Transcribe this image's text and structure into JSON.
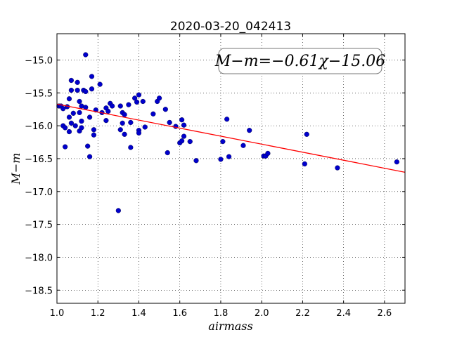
{
  "chart_data": {
    "type": "scatter",
    "title": "2020-03-20_042413",
    "xlabel": "airmass",
    "ylabel": "M−m",
    "xlim": [
      1.0,
      2.7
    ],
    "ylim": [
      -18.7,
      -14.6
    ],
    "y_inverted": true,
    "grid": true,
    "x_ticks": [
      "1.0",
      "1.2",
      "1.4",
      "1.6",
      "1.8",
      "2.0",
      "2.2",
      "2.4",
      "2.6"
    ],
    "y_ticks": [
      "−15.0",
      "−15.5",
      "−16.0",
      "−16.5",
      "−17.0",
      "−17.5",
      "−18.0",
      "−18.5"
    ],
    "annotation": "M−m=−0.61χ−15.06",
    "fit": {
      "slope": -0.61,
      "intercept": -15.06,
      "color": "#ff0000"
    },
    "point_color": "#0000cc",
    "points": [
      [
        1.01,
        -15.7
      ],
      [
        1.02,
        -15.7
      ],
      [
        1.03,
        -15.74
      ],
      [
        1.03,
        -16.0
      ],
      [
        1.04,
        -16.03
      ],
      [
        1.04,
        -16.32
      ],
      [
        1.05,
        -15.71
      ],
      [
        1.06,
        -15.87
      ],
      [
        1.06,
        -15.59
      ],
      [
        1.06,
        -16.09
      ],
      [
        1.07,
        -15.96
      ],
      [
        1.07,
        -15.46
      ],
      [
        1.07,
        -15.31
      ],
      [
        1.08,
        -15.81
      ],
      [
        1.09,
        -16.0
      ],
      [
        1.1,
        -15.34
      ],
      [
        1.1,
        -15.46
      ],
      [
        1.11,
        -15.63
      ],
      [
        1.11,
        -15.8
      ],
      [
        1.11,
        -16.08
      ],
      [
        1.12,
        -15.7
      ],
      [
        1.12,
        -16.03
      ],
      [
        1.12,
        -15.93
      ],
      [
        1.13,
        -15.46
      ],
      [
        1.14,
        -14.92
      ],
      [
        1.14,
        -15.48
      ],
      [
        1.14,
        -15.72
      ],
      [
        1.15,
        -16.31
      ],
      [
        1.16,
        -16.47
      ],
      [
        1.16,
        -15.87
      ],
      [
        1.17,
        -15.44
      ],
      [
        1.17,
        -15.25
      ],
      [
        1.18,
        -16.06
      ],
      [
        1.18,
        -16.14
      ],
      [
        1.19,
        -15.76
      ],
      [
        1.21,
        -15.37
      ],
      [
        1.22,
        -15.8
      ],
      [
        1.24,
        -15.92
      ],
      [
        1.24,
        -15.73
      ],
      [
        1.25,
        -15.78
      ],
      [
        1.26,
        -15.66
      ],
      [
        1.27,
        -15.7
      ],
      [
        1.3,
        -17.29
      ],
      [
        1.31,
        -15.7
      ],
      [
        1.31,
        -16.06
      ],
      [
        1.32,
        -15.8
      ],
      [
        1.32,
        -15.96
      ],
      [
        1.33,
        -16.13
      ],
      [
        1.33,
        -15.83
      ],
      [
        1.35,
        -15.68
      ],
      [
        1.36,
        -15.95
      ],
      [
        1.36,
        -16.33
      ],
      [
        1.38,
        -15.58
      ],
      [
        1.39,
        -15.64
      ],
      [
        1.4,
        -15.53
      ],
      [
        1.4,
        -16.07
      ],
      [
        1.4,
        -16.11
      ],
      [
        1.42,
        -15.63
      ],
      [
        1.43,
        -16.02
      ],
      [
        1.47,
        -15.82
      ],
      [
        1.49,
        -15.63
      ],
      [
        1.5,
        -15.58
      ],
      [
        1.53,
        -15.75
      ],
      [
        1.54,
        -16.41
      ],
      [
        1.55,
        -15.95
      ],
      [
        1.58,
        -16.01
      ],
      [
        1.6,
        -16.26
      ],
      [
        1.61,
        -15.91
      ],
      [
        1.61,
        -16.23
      ],
      [
        1.62,
        -16.16
      ],
      [
        1.62,
        -15.99
      ],
      [
        1.65,
        -16.24
      ],
      [
        1.68,
        -16.53
      ],
      [
        1.8,
        -16.51
      ],
      [
        1.81,
        -16.24
      ],
      [
        1.83,
        -15.9
      ],
      [
        1.84,
        -16.47
      ],
      [
        1.91,
        -16.3
      ],
      [
        1.94,
        -16.07
      ],
      [
        2.01,
        -16.46
      ],
      [
        2.02,
        -16.46
      ],
      [
        2.03,
        -16.42
      ],
      [
        2.21,
        -16.58
      ],
      [
        2.22,
        -16.13
      ],
      [
        2.37,
        -16.64
      ],
      [
        2.66,
        -16.55
      ]
    ]
  }
}
